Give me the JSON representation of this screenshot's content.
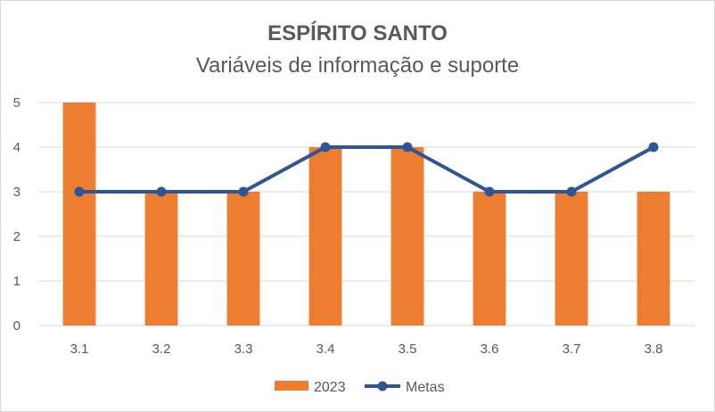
{
  "chart_data": {
    "type": "bar",
    "title": "ESPÍRITO SANTO",
    "subtitle": "Variáveis de informação e suporte",
    "categories": [
      "3.1",
      "3.2",
      "3.3",
      "3.4",
      "3.5",
      "3.6",
      "3.7",
      "3.8"
    ],
    "series": [
      {
        "name": "2023",
        "type": "bar",
        "color": "#ed7d31",
        "values": [
          5,
          3,
          3,
          4,
          4,
          3,
          3,
          3
        ]
      },
      {
        "name": "Metas",
        "type": "line",
        "color": "#2f5597",
        "values": [
          3,
          3,
          3,
          4,
          4,
          3,
          3,
          4
        ]
      }
    ],
    "ylim": [
      0,
      5
    ],
    "yticks": [
      "0",
      "1",
      "2",
      "3",
      "4",
      "5"
    ],
    "grid": true,
    "legend": "bottom"
  }
}
